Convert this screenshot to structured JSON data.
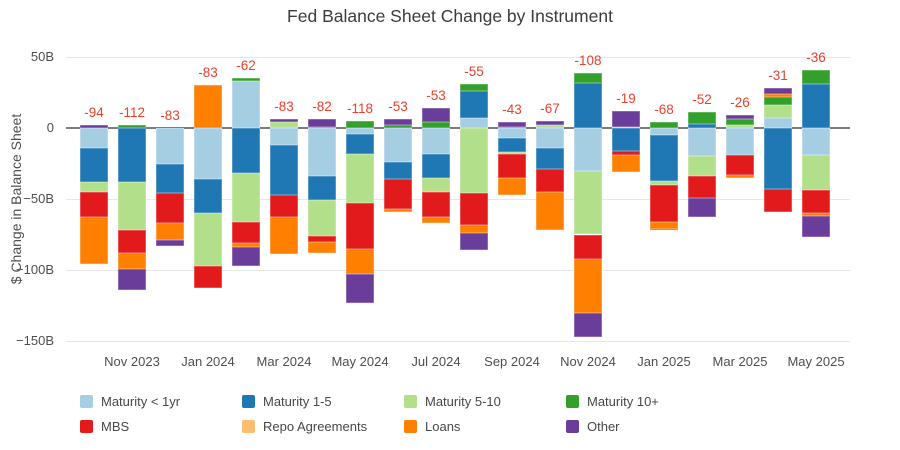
{
  "chart_data": {
    "type": "bar",
    "stacked": true,
    "title": "Fed Balance Sheet Change by Instrument",
    "ylabel": "$ Change in Balance Sheet",
    "unit": "billions USD",
    "ylim": [
      -150,
      50
    ],
    "grid": true,
    "legend_position": "bottom",
    "label_color": "#e8402c",
    "yticks": [
      {
        "value": 50,
        "label": "50B"
      },
      {
        "value": 0,
        "label": "0"
      },
      {
        "value": -50,
        "label": "−50B"
      },
      {
        "value": -100,
        "label": "−100B"
      },
      {
        "value": -150,
        "label": "−150B"
      }
    ],
    "series": [
      {
        "id": "lt1",
        "name": "Maturity < 1yr",
        "color": "#a6cee3"
      },
      {
        "id": "b15",
        "name": "Maturity 1-5",
        "color": "#1f78b4"
      },
      {
        "id": "g510",
        "name": "Maturity 5-10",
        "color": "#b2df8a"
      },
      {
        "id": "g10",
        "name": "Maturity 10+",
        "color": "#33a02c"
      },
      {
        "id": "mbs",
        "name": "MBS",
        "color": "#e31a1c"
      },
      {
        "id": "repo",
        "name": "Repo Agreements",
        "color": "#fdbf6f"
      },
      {
        "id": "loans",
        "name": "Loans",
        "color": "#ff7f00"
      },
      {
        "id": "other",
        "name": "Other",
        "color": "#6a3d9a"
      }
    ],
    "bars": [
      {
        "month": "Oct 2023",
        "tick_label": "",
        "total": -94,
        "values": {
          "lt1": -14,
          "b15": -24,
          "g510": -7,
          "mbs": -18,
          "loans": -33,
          "other": 2
        }
      },
      {
        "month": "Nov 2023",
        "tick_label": "Nov 2023",
        "total": -112,
        "values": {
          "b15": -38,
          "g510": -34,
          "g10": 2,
          "mbs": -16,
          "loans": -11,
          "other": -15
        }
      },
      {
        "month": "Dec 2023",
        "tick_label": "",
        "total": -83,
        "values": {
          "lt1": -25,
          "b15": -21,
          "mbs": -21,
          "loans": -12,
          "other": -4
        }
      },
      {
        "month": "Jan 2024",
        "tick_label": "Jan 2024",
        "total": -83,
        "values": {
          "lt1": -36,
          "b15": -24,
          "g510": -37,
          "mbs": -16,
          "loans": 30
        }
      },
      {
        "month": "Feb 2024",
        "tick_label": "",
        "total": -62,
        "values": {
          "lt1": 33,
          "b15": -32,
          "g510": -34,
          "g10": 2,
          "mbs": -15,
          "loans": -3,
          "other": -13
        }
      },
      {
        "month": "Mar 2024",
        "tick_label": "Mar 2024",
        "total": -83,
        "values": {
          "lt1": -12,
          "b15": -35,
          "g510": 4,
          "mbs": -16,
          "loans": -26,
          "other": 2
        }
      },
      {
        "month": "Apr 2024",
        "tick_label": "",
        "total": -82,
        "values": {
          "lt1": -34,
          "b15": -17,
          "g510": -25,
          "g10": 1,
          "mbs": -4,
          "loans": -8,
          "other": 5
        }
      },
      {
        "month": "May 2024",
        "tick_label": "May 2024",
        "total": -118,
        "values": {
          "lt1": -4,
          "b15": -14,
          "g510": -35,
          "g10": 5,
          "mbs": -32,
          "loans": -18,
          "other": -20
        }
      },
      {
        "month": "Jun 2024",
        "tick_label": "",
        "total": -53,
        "values": {
          "lt1": -24,
          "b15": -12,
          "g10": 2,
          "mbs": -21,
          "loans": -2,
          "other": 4
        }
      },
      {
        "month": "Jul 2024",
        "tick_label": "Jul 2024",
        "total": -53,
        "values": {
          "lt1": -18,
          "b15": -17,
          "g510": -10,
          "g10": 4,
          "mbs": -18,
          "loans": -4,
          "other": 10
        }
      },
      {
        "month": "Aug 2024",
        "tick_label": "",
        "total": -55,
        "values": {
          "lt1": 7,
          "b15": 19,
          "g510": -46,
          "g10": 5,
          "mbs": -22,
          "loans": -6,
          "other": -12
        }
      },
      {
        "month": "Sep 2024",
        "tick_label": "Sep 2024",
        "total": -43,
        "values": {
          "lt1": -7,
          "b15": -10,
          "g510": -1,
          "g10": 1,
          "mbs": -17,
          "loans": -12,
          "other": 3
        }
      },
      {
        "month": "Oct 2024",
        "tick_label": "",
        "total": -67,
        "values": {
          "lt1": -14,
          "b15": -15,
          "g510": 2,
          "mbs": -16,
          "loans": -27,
          "other": 3
        }
      },
      {
        "month": "Nov 2024",
        "tick_label": "Nov 2024",
        "total": -108,
        "values": {
          "lt1": -30,
          "b15": 32,
          "g510": -45,
          "g10": 7,
          "mbs": -17,
          "loans": -38,
          "other": -17
        }
      },
      {
        "month": "Dec 2024",
        "tick_label": "",
        "total": -19,
        "values": {
          "b15": -16,
          "g510": 1,
          "mbs": -3,
          "loans": -12,
          "other": 11
        }
      },
      {
        "month": "Jan 2025",
        "tick_label": "Jan 2025",
        "total": -68,
        "values": {
          "lt1": -5,
          "b15": -32,
          "g510": -3,
          "g10": 4,
          "mbs": -26,
          "loans": -5,
          "other": -1
        }
      },
      {
        "month": "Feb 2025",
        "tick_label": "",
        "total": -52,
        "values": {
          "lt1": -20,
          "b15": 3,
          "g510": -14,
          "g10": 8,
          "mbs": -15,
          "other": -14
        }
      },
      {
        "month": "Mar 2025",
        "tick_label": "Mar 2025",
        "total": -26,
        "values": {
          "lt1": -19,
          "g510": 2,
          "g10": 4,
          "mbs": -14,
          "loans": -2,
          "other": 3
        }
      },
      {
        "month": "Apr 2025",
        "tick_label": "",
        "total": -31,
        "values": {
          "lt1": 7,
          "b15": -43,
          "g510": 9,
          "g10": 6,
          "mbs": -16,
          "loans": 2,
          "other": 4
        }
      },
      {
        "month": "May 2025",
        "tick_label": "May 2025",
        "total": -36,
        "values": {
          "lt1": -19,
          "b15": 31,
          "g510": -25,
          "g10": 10,
          "mbs": -16,
          "loans": -2,
          "other": -15
        }
      }
    ]
  }
}
